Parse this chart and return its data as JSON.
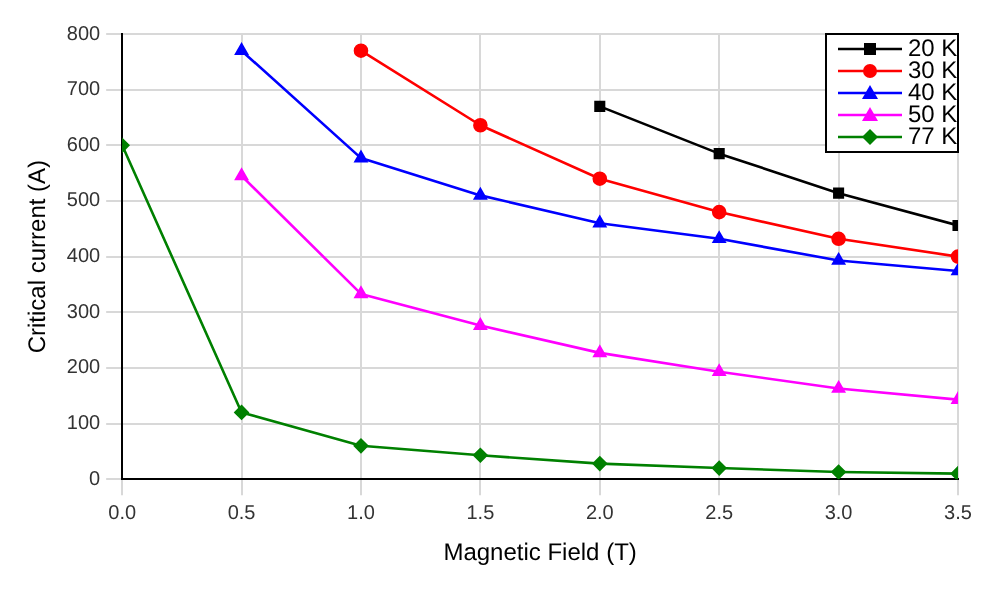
{
  "chart_data": {
    "type": "line",
    "xlabel": "Magnetic Field (T)",
    "ylabel": "Critical current (A)",
    "xlim": [
      0,
      3.5
    ],
    "xticks": [
      {
        "value": 0,
        "label": "0.0"
      },
      {
        "value": 0.5,
        "label": "0.5"
      },
      {
        "value": 1,
        "label": "1.0"
      },
      {
        "value": 1.5,
        "label": "1.5"
      },
      {
        "value": 2,
        "label": "2.0"
      },
      {
        "value": 2.5,
        "label": "2.5"
      },
      {
        "value": 3,
        "label": "3.0"
      },
      {
        "value": 3.5,
        "label": "3.5"
      }
    ],
    "ylim": [
      0,
      800
    ],
    "yticks": [
      0,
      100,
      200,
      300,
      400,
      500,
      600,
      700,
      800
    ],
    "grid": true,
    "legend": "top right",
    "line_style": "solid",
    "series": [
      {
        "name": "20 K",
        "color": "#000000",
        "marker": "square",
        "x": [
          2,
          2.5,
          3,
          3.5
        ],
        "values": [
          670,
          585,
          514,
          456
        ]
      },
      {
        "name": "30 K",
        "color": "#ff0000",
        "marker": "circle",
        "x": [
          1,
          1.5,
          2,
          2.5,
          3,
          3.5
        ],
        "values": [
          770,
          636,
          540,
          480,
          432,
          400
        ]
      },
      {
        "name": "40 K",
        "color": "#0000ff",
        "marker": "triangle",
        "x": [
          0.5,
          1,
          1.5,
          2,
          2.5,
          3,
          3.5
        ],
        "values": [
          770,
          577,
          510,
          460,
          432,
          393,
          374
        ]
      },
      {
        "name": "50 K",
        "color": "#ff00ff",
        "marker": "triangle",
        "x": [
          0.5,
          1,
          1.5,
          2,
          2.5,
          3,
          3.5
        ],
        "values": [
          545,
          333,
          276,
          227,
          193,
          163,
          143
        ]
      },
      {
        "name": "77 K",
        "color": "#008000",
        "marker": "diamond",
        "x": [
          0,
          0.5,
          1,
          1.5,
          2,
          2.5,
          3,
          3.5
        ],
        "values": [
          600,
          120,
          60,
          43,
          28,
          20,
          13,
          10
        ]
      }
    ]
  }
}
